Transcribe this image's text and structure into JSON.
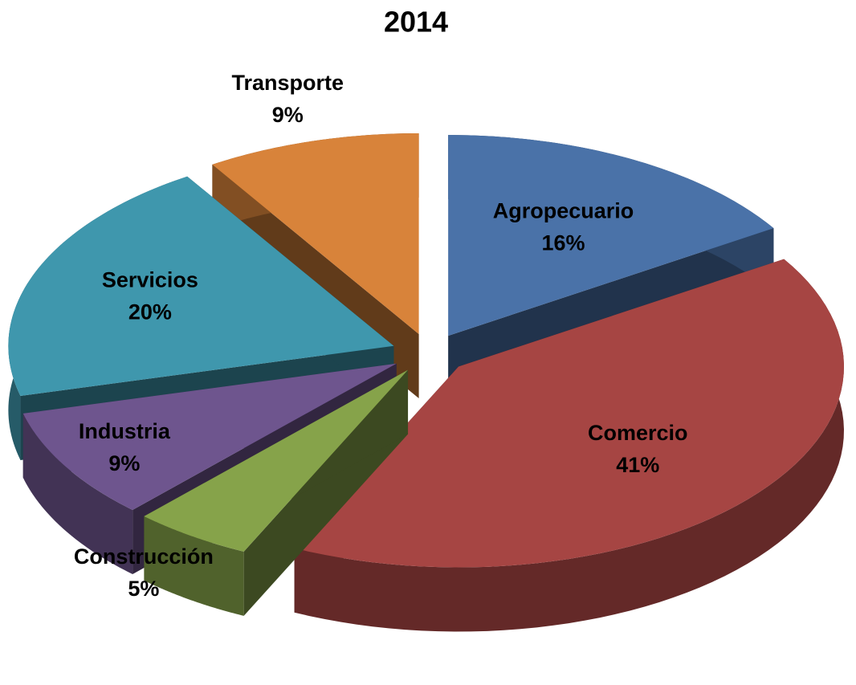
{
  "chart_data": {
    "type": "pie",
    "title": "2014",
    "categories": [
      "Agropecuario",
      "Comercio",
      "Construcción",
      "Industria",
      "Servicios",
      "Transporte"
    ],
    "values": [
      16,
      41,
      5,
      9,
      20,
      9
    ],
    "value_labels": [
      "16%",
      "41%",
      "5%",
      "9%",
      "20%",
      "9%"
    ],
    "colors": [
      "#4a72a8",
      "#a64543",
      "#86a34a",
      "#6e558e",
      "#3f97ad",
      "#d8833a"
    ]
  }
}
